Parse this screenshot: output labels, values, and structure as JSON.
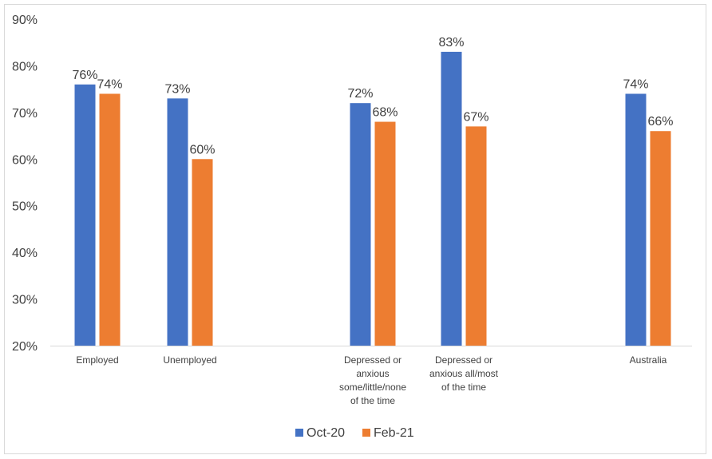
{
  "chart_data": {
    "type": "bar",
    "categories": [
      [
        "Employed"
      ],
      [
        "Unemployed"
      ],
      [
        "Depressed or",
        "anxious",
        "some/little/none",
        "of the time"
      ],
      [
        "Depressed or",
        "anxious all/most",
        "of the time"
      ],
      [
        "Australia"
      ]
    ],
    "series": [
      {
        "name": "Oct-20",
        "color": "#4472C4",
        "values": [
          76,
          73,
          72,
          83,
          74
        ],
        "labels": [
          "76%",
          "73%",
          "72%",
          "83%",
          "74%"
        ]
      },
      {
        "name": "Feb-21",
        "color": "#ED7D31",
        "values": [
          74,
          60,
          68,
          67,
          66
        ],
        "labels": [
          "74%",
          "60%",
          "68%",
          "67%",
          "66%"
        ]
      }
    ],
    "ylim": [
      20,
      90
    ],
    "yticks": [
      20,
      30,
      40,
      50,
      60,
      70,
      80,
      90
    ],
    "ytick_labels": [
      "20%",
      "30%",
      "40%",
      "50%",
      "60%",
      "70%",
      "80%",
      "90%"
    ],
    "legend_position": "bottom",
    "grid": false
  }
}
